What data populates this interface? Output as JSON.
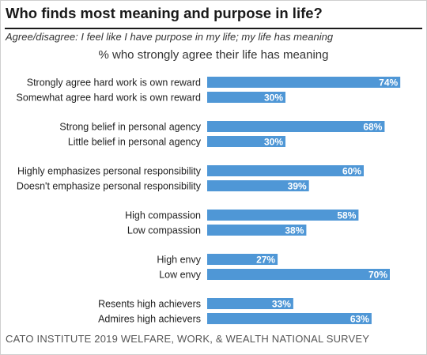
{
  "header": {
    "title": "Who finds most meaning and purpose in life?",
    "subtitle": "Agree/disagree: I feel like I have purpose in my life; my life has meaning"
  },
  "footer": {
    "source": "CATO INSTITUTE 2019 WELFARE, WORK, & WEALTH NATIONAL SURVEY"
  },
  "chart_data": {
    "type": "bar",
    "orientation": "horizontal",
    "title": "% who strongly agree their life has meaning",
    "xlim": [
      0,
      100
    ],
    "grid": false,
    "legend": "none",
    "bar_color": "#4f97d6",
    "label_color": "#ffffff",
    "groups": [
      {
        "categories": [
          "Strongly agree hard work is own reward",
          "Somewhat agree hard work is own reward"
        ],
        "values": [
          74,
          30
        ],
        "labels": [
          "74%",
          "30%"
        ]
      },
      {
        "categories": [
          "Strong belief in personal agency",
          "Little belief in personal agency"
        ],
        "values": [
          68,
          30
        ],
        "labels": [
          "68%",
          "30%"
        ]
      },
      {
        "categories": [
          "Highly emphasizes personal responsibility",
          "Doesn't emphasize personal responsibility"
        ],
        "values": [
          60,
          39
        ],
        "labels": [
          "60%",
          "39%"
        ]
      },
      {
        "categories": [
          "High compassion",
          "Low compassion"
        ],
        "values": [
          58,
          38
        ],
        "labels": [
          "58%",
          "38%"
        ]
      },
      {
        "categories": [
          "High envy",
          "Low envy"
        ],
        "values": [
          27,
          70
        ],
        "labels": [
          "27%",
          "70%"
        ]
      },
      {
        "categories": [
          "Resents high achievers",
          "Admires high achievers"
        ],
        "values": [
          33,
          63
        ],
        "labels": [
          "33%",
          "63%"
        ]
      }
    ]
  }
}
